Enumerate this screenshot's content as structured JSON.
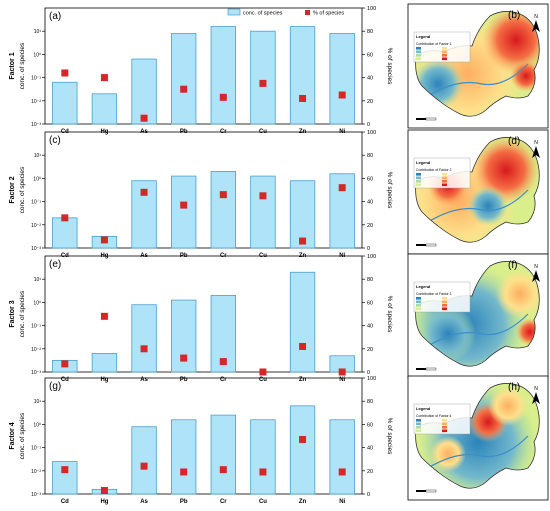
{
  "legend": {
    "bar_label": "conc. of species",
    "marker_label": "% of species"
  },
  "colors": {
    "bar_fill": "#aee3f8",
    "bar_stroke": "#4a9fd0",
    "marker": "#d62728"
  },
  "chart_data": [
    {
      "type": "bar",
      "panel_label": "(a)",
      "factor_label": "Factor 1",
      "ylabel": "conc. of species",
      "y2label": "% of species",
      "categories": [
        "Cd",
        "Hg",
        "As",
        "Pb",
        "Cr",
        "Cu",
        "Zn",
        "Ni"
      ],
      "yscale": "log",
      "ylim_exp": [
        -3,
        2
      ],
      "y_ticks": [
        "10⁻³",
        "10⁻²",
        "10⁻¹",
        "10⁰",
        "10¹"
      ],
      "y2lim": [
        0,
        100
      ],
      "y2_ticks": [
        "0",
        "20",
        "40",
        "60",
        "80",
        "100"
      ],
      "series": [
        {
          "name": "conc. of species",
          "kind": "bar",
          "values_log10": [
            -1.2,
            -1.7,
            -0.2,
            0.9,
            1.2,
            1.0,
            1.2,
            0.9
          ]
        },
        {
          "name": "% of species",
          "kind": "marker",
          "values": [
            44,
            40,
            5,
            30,
            23,
            35,
            22,
            25
          ]
        }
      ]
    },
    {
      "type": "bar",
      "panel_label": "(c)",
      "factor_label": "Factor 2",
      "ylabel": "conc. of species",
      "y2label": "% of species",
      "categories": [
        "Cd",
        "Hg",
        "As",
        "Pb",
        "Cr",
        "Cu",
        "Zn",
        "Ni"
      ],
      "yscale": "log",
      "ylim_exp": [
        -3,
        2
      ],
      "y_ticks": [
        "10⁻³",
        "10⁻²",
        "10⁻¹",
        "10⁰",
        "10¹"
      ],
      "y2lim": [
        0,
        100
      ],
      "y2_ticks": [
        "0",
        "20",
        "40",
        "60",
        "80",
        "100"
      ],
      "series": [
        {
          "name": "conc. of species",
          "kind": "bar",
          "values_log10": [
            -1.7,
            -2.5,
            -0.1,
            0.1,
            0.3,
            0.1,
            -0.1,
            0.2
          ]
        },
        {
          "name": "% of species",
          "kind": "marker",
          "values": [
            26,
            7,
            48,
            37,
            46,
            45,
            6,
            52
          ]
        }
      ]
    },
    {
      "type": "bar",
      "panel_label": "(e)",
      "factor_label": "Factor 3",
      "ylabel": "conc. of species",
      "y2label": "% of species",
      "categories": [
        "Cd",
        "Hg",
        "As",
        "Pb",
        "Cr",
        "Cu",
        "Zn",
        "Ni"
      ],
      "yscale": "log",
      "ylim_exp": [
        -3,
        2
      ],
      "y_ticks": [
        "10⁻³",
        "10⁻²",
        "10⁻¹",
        "10⁰",
        "10¹"
      ],
      "y2lim": [
        0,
        100
      ],
      "y2_ticks": [
        "0",
        "20",
        "40",
        "60",
        "80",
        "100"
      ],
      "series": [
        {
          "name": "conc. of species",
          "kind": "bar",
          "values_log10": [
            -2.5,
            -2.2,
            -0.1,
            0.1,
            0.3,
            -3.0,
            1.3,
            -2.3
          ]
        },
        {
          "name": "% of species",
          "kind": "marker",
          "values": [
            7,
            48,
            20,
            12,
            9,
            0,
            22,
            0
          ]
        }
      ]
    },
    {
      "type": "bar",
      "panel_label": "(g)",
      "factor_label": "Factor 4",
      "ylabel": "conc. of species",
      "y2label": "% of species",
      "categories": [
        "Cd",
        "Hg",
        "As",
        "Pb",
        "Cr",
        "Cu",
        "Zn",
        "Ni"
      ],
      "yscale": "log",
      "ylim_exp": [
        -3,
        2
      ],
      "y_ticks": [
        "10⁻³",
        "10⁻²",
        "10⁻¹",
        "10⁰",
        "10¹"
      ],
      "y2lim": [
        0,
        100
      ],
      "y2_ticks": [
        "0",
        "20",
        "40",
        "60",
        "80",
        "100"
      ],
      "series": [
        {
          "name": "conc. of species",
          "kind": "bar",
          "values_log10": [
            -1.6,
            -2.8,
            -0.1,
            0.2,
            0.4,
            0.2,
            0.8,
            0.2
          ]
        },
        {
          "name": "% of species",
          "kind": "marker",
          "values": [
            21,
            3,
            24,
            19,
            21,
            19,
            47,
            19
          ]
        }
      ]
    }
  ],
  "maps": [
    {
      "panel_label": "(b)",
      "legend_title": "Legend",
      "legend_subtitle": "Contribution of Factor 1",
      "north_label": "N"
    },
    {
      "panel_label": "(d)",
      "legend_title": "Legend",
      "legend_subtitle": "Contribution of Factor 2",
      "north_label": "N"
    },
    {
      "panel_label": "(f)",
      "legend_title": "Legend",
      "legend_subtitle": "Contribution of Factor 3",
      "north_label": "N"
    },
    {
      "panel_label": "(h)",
      "legend_title": "Legend",
      "legend_subtitle": "Contribution of Factor 4",
      "north_label": "N"
    }
  ]
}
